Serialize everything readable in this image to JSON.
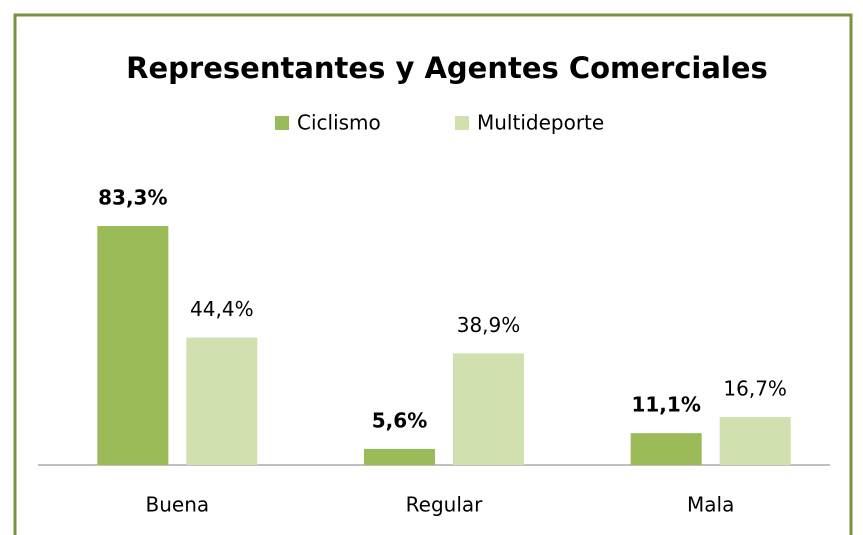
{
  "chart_data": {
    "type": "bar",
    "title": "Representantes y Agentes Comerciales",
    "categories": [
      "Buena",
      "Regular",
      "Mala"
    ],
    "series": [
      {
        "name": "Ciclismo",
        "color": "#9bbb59",
        "values": [
          83.3,
          5.6,
          11.1
        ],
        "value_labels": [
          "83,3%",
          "5,6%",
          "11,1%"
        ]
      },
      {
        "name": "Multideporte",
        "color": "#d0e0ae",
        "values": [
          44.4,
          38.9,
          16.7
        ],
        "value_labels": [
          "44,4%",
          "38,9%",
          "16,7%"
        ]
      }
    ],
    "legend": "top"
  }
}
